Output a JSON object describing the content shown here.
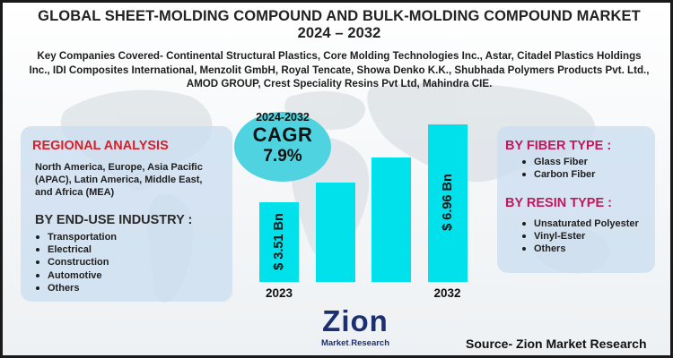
{
  "title": "GLOBAL SHEET-MOLDING COMPOUND AND BULK-MOLDING COMPOUND MARKET",
  "title_years": "2024 – 2032",
  "companies": "Key Companies Covered- Continental Structural Plastics, Core Molding Technologies Inc., Astar, Citadel Plastics Holdings Inc., IDI Composites International, Menzolit GmbH, Royal Tencate, Showa Denko K.K., Shubhada Polymers Products Pvt. Ltd., AMOD GROUP, Crest Speciality Resins Pvt Ltd, Mahindra CIE.",
  "regional": {
    "heading": "REGIONAL ANALYSIS",
    "text": "North America, Europe, Asia Pacific (APAC), Latin America, Middle East, and Africa (MEA)"
  },
  "end_use": {
    "heading": "BY END-USE INDUSTRY :",
    "items": [
      "Transportation",
      "Electrical",
      "Construction",
      "Automotive",
      "Others"
    ]
  },
  "fiber": {
    "heading": "BY FIBER TYPE :",
    "items": [
      "Glass Fiber",
      "Carbon Fiber"
    ]
  },
  "resin": {
    "heading": "BY RESIN TYPE :",
    "items": [
      "Unsaturated Polyester",
      "Vinyl-Ester",
      "Others"
    ]
  },
  "cagr": {
    "years": "2024-2032",
    "label": "CAGR",
    "value": "7.9%"
  },
  "colors": {
    "bar": "#00e1ec",
    "cagr_bubble": "#4fd3e0",
    "regional_heading": "#d9202a",
    "segment_heading": "#c2185b",
    "card": "#ccdef0",
    "logo_blue": "#1b2f72",
    "logo_orange": "#f28c1e"
  },
  "chart_data": {
    "type": "bar",
    "categories": [
      "2023",
      "",
      "",
      "2032"
    ],
    "values": [
      3.51,
      4.4,
      5.5,
      6.96
    ],
    "value_labels": [
      "$ 3.51 Bn",
      "",
      "",
      "$ 6.96 Bn"
    ],
    "x_tick_labels": [
      "2023",
      "2032"
    ],
    "unit": "Bn"
  },
  "logo": {
    "main": "Zion",
    "sub_left": "Market",
    "sub_right": "Research"
  },
  "source": "Source- Zion Market Research"
}
